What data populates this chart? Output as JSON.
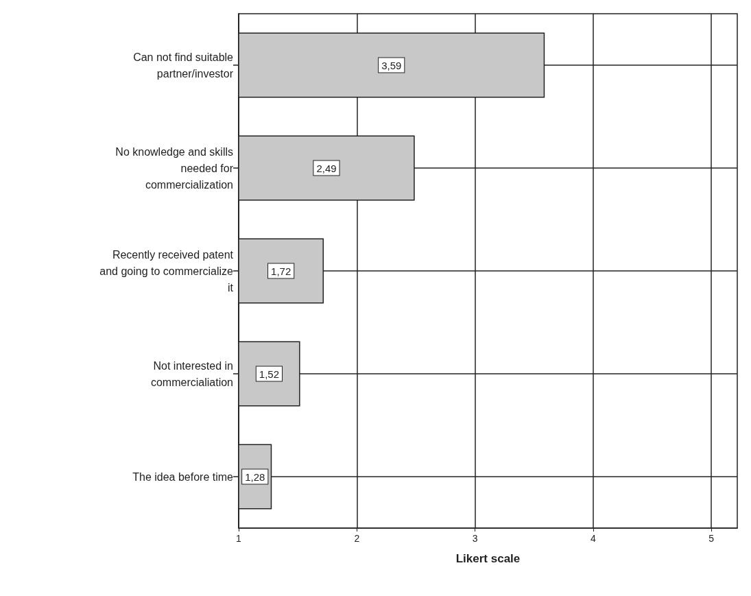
{
  "chart_data": {
    "type": "bar",
    "orientation": "horizontal",
    "categories": [
      "Can not find suitable\npartner/investor",
      "No knowledge and skills\nneeded for\ncommercialization",
      "Recently received patent\nand going to commercialize\nit",
      "Not interested in\ncommercialiation",
      "The idea before time"
    ],
    "values": [
      3.59,
      2.49,
      1.72,
      1.52,
      1.28
    ],
    "value_labels": [
      "3,59",
      "2,49",
      "1,72",
      "1,52",
      "1,28"
    ],
    "color": "#c8c8c8",
    "xlim": [
      1,
      5.22
    ],
    "xticks": [
      1,
      2,
      3,
      4,
      5
    ],
    "xlabel": "Likert scale",
    "grid": true
  }
}
